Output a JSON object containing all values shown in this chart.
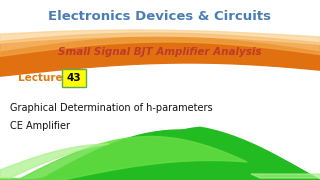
{
  "bg_color": "#ffffff",
  "title_text": "Electronics Devices & Circuits",
  "title_color": "#4a7db5",
  "subtitle_text": "Small Signal BJT Amplifier Analysis",
  "subtitle_color": "#c0392b",
  "lecture_label": "Lecture",
  "lecture_label_color": "#e07b10",
  "lecture_number": "43",
  "lecture_number_bg": "#ffff00",
  "lecture_number_border": "#5aaa5a",
  "body_line1": "Graphical Determination of h-parameters",
  "body_line2": "CE Amplifier",
  "body_color": "#111111",
  "wave_orange_dark": "#e07010",
  "wave_orange_mid": "#f0a040",
  "wave_orange_light": "#fad090",
  "wave_green_dark": "#22bb22",
  "wave_green_mid": "#66dd44",
  "wave_green_light": "#aaf088"
}
